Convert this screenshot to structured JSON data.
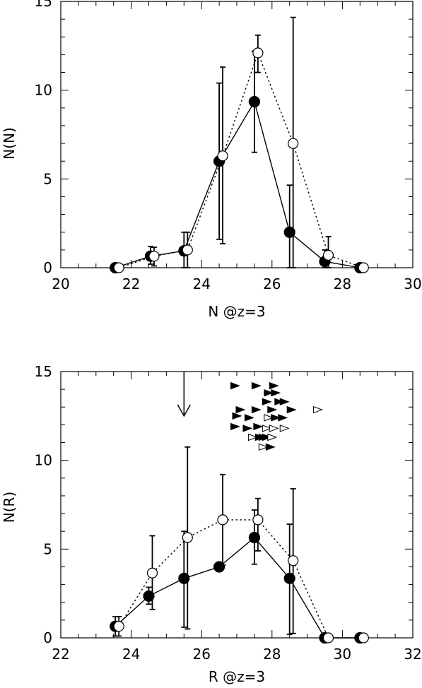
{
  "chart_data": [
    {
      "type": "scatter",
      "xlabel": "N  @z=3",
      "ylabel": "N(N)",
      "xlim": [
        20,
        30
      ],
      "ylim": [
        0,
        15
      ],
      "xticks": [
        20,
        22,
        24,
        26,
        28,
        30
      ],
      "yticks": [
        0,
        5,
        10,
        15
      ],
      "series": [
        {
          "marker": "filled-circle",
          "line": "solid",
          "points": [
            {
              "x": 21.55,
              "y": 0.0
            },
            {
              "x": 22.55,
              "y": 0.65,
              "lo": 0.2,
              "hi": 1.2
            },
            {
              "x": 23.5,
              "y": 0.95,
              "lo": 0.0,
              "hi": 2.0
            },
            {
              "x": 24.5,
              "y": 6.0,
              "lo": 1.6,
              "hi": 10.4
            },
            {
              "x": 25.5,
              "y": 9.35,
              "lo": 6.5,
              "hi": 12.2
            },
            {
              "x": 26.5,
              "y": 2.0,
              "lo": 0.0,
              "hi": 4.65
            },
            {
              "x": 27.5,
              "y": 0.35,
              "lo": 0.0,
              "hi": 1.0
            },
            {
              "x": 28.5,
              "y": 0.0
            }
          ]
        },
        {
          "marker": "open-circle",
          "line": "dotted",
          "points": [
            {
              "x": 21.65,
              "y": 0.0
            },
            {
              "x": 22.65,
              "y": 0.65,
              "lo": 0.1,
              "hi": 1.15
            },
            {
              "x": 23.6,
              "y": 1.0,
              "lo": 0.0,
              "hi": 2.0
            },
            {
              "x": 24.6,
              "y": 6.3,
              "lo": 1.35,
              "hi": 11.3
            },
            {
              "x": 25.6,
              "y": 12.1,
              "lo": 11.0,
              "hi": 13.1
            },
            {
              "x": 26.6,
              "y": 7.0,
              "lo": 0.0,
              "hi": 14.1
            },
            {
              "x": 27.6,
              "y": 0.7,
              "lo": 0.0,
              "hi": 1.75
            },
            {
              "x": 28.6,
              "y": 0.0
            }
          ]
        }
      ]
    },
    {
      "type": "scatter",
      "xlabel": "R  @z=3",
      "ylabel": "N(R)",
      "xlim": [
        22,
        32
      ],
      "ylim": [
        0,
        15
      ],
      "xticks": [
        22,
        24,
        26,
        28,
        30,
        32
      ],
      "yticks": [
        0,
        5,
        10,
        15
      ],
      "series": [
        {
          "marker": "filled-circle",
          "line": "solid",
          "points": [
            {
              "x": 23.55,
              "y": 0.65,
              "lo": 0.1,
              "hi": 1.2
            },
            {
              "x": 24.5,
              "y": 2.35,
              "lo": 1.9,
              "hi": 2.85
            },
            {
              "x": 25.5,
              "y": 3.35,
              "lo": 0.6,
              "hi": 6.0
            },
            {
              "x": 26.5,
              "y": 4.0
            },
            {
              "x": 27.5,
              "y": 5.65,
              "lo": 4.15,
              "hi": 7.2
            },
            {
              "x": 28.5,
              "y": 3.35,
              "lo": 0.2,
              "hi": 6.4
            },
            {
              "x": 29.5,
              "y": 0.0
            },
            {
              "x": 30.5,
              "y": 0.0
            }
          ]
        },
        {
          "marker": "open-circle",
          "line": "dotted",
          "points": [
            {
              "x": 23.65,
              "y": 0.65,
              "lo": 0.1,
              "hi": 1.2
            },
            {
              "x": 24.6,
              "y": 3.65,
              "lo": 1.6,
              "hi": 5.75
            },
            {
              "x": 25.6,
              "y": 5.65,
              "lo": 0.5,
              "hi": 10.75
            },
            {
              "x": 26.6,
              "y": 6.65,
              "lo": 4.1,
              "hi": 9.2
            },
            {
              "x": 27.6,
              "y": 6.65,
              "lo": 4.9,
              "hi": 7.85
            },
            {
              "x": 28.6,
              "y": 4.35,
              "lo": 0.25,
              "hi": 8.4
            },
            {
              "x": 29.6,
              "y": 0.0
            },
            {
              "x": 30.6,
              "y": 0.0
            }
          ]
        }
      ],
      "arrow": {
        "x": 25.5,
        "y_from": 15.0,
        "y_to": 12.5
      },
      "triangles": [
        {
          "x": 26.95,
          "y": 14.2,
          "filled": true
        },
        {
          "x": 27.55,
          "y": 14.2,
          "filled": true
        },
        {
          "x": 28.05,
          "y": 14.2,
          "filled": true
        },
        {
          "x": 27.9,
          "y": 13.8,
          "filled": true
        },
        {
          "x": 28.1,
          "y": 13.8,
          "filled": true
        },
        {
          "x": 27.85,
          "y": 13.3,
          "filled": true
        },
        {
          "x": 28.2,
          "y": 13.3,
          "filled": true
        },
        {
          "x": 28.35,
          "y": 13.3,
          "filled": true
        },
        {
          "x": 27.1,
          "y": 12.85,
          "filled": true
        },
        {
          "x": 27.55,
          "y": 12.85,
          "filled": true
        },
        {
          "x": 28.0,
          "y": 12.85,
          "filled": true
        },
        {
          "x": 28.55,
          "y": 12.85,
          "filled": true
        },
        {
          "x": 29.3,
          "y": 12.85,
          "filled": false
        },
        {
          "x": 27.0,
          "y": 12.5,
          "filled": true
        },
        {
          "x": 27.35,
          "y": 12.4,
          "filled": true
        },
        {
          "x": 27.9,
          "y": 12.4,
          "filled": false
        },
        {
          "x": 28.1,
          "y": 12.4,
          "filled": true
        },
        {
          "x": 28.3,
          "y": 12.4,
          "filled": true
        },
        {
          "x": 26.95,
          "y": 11.9,
          "filled": true
        },
        {
          "x": 27.3,
          "y": 11.8,
          "filled": true
        },
        {
          "x": 27.6,
          "y": 11.9,
          "filled": true
        },
        {
          "x": 27.85,
          "y": 11.8,
          "filled": false
        },
        {
          "x": 28.05,
          "y": 11.8,
          "filled": false
        },
        {
          "x": 28.35,
          "y": 11.8,
          "filled": false
        },
        {
          "x": 27.45,
          "y": 11.3,
          "filled": false
        },
        {
          "x": 27.65,
          "y": 11.3,
          "filled": true
        },
        {
          "x": 27.75,
          "y": 11.3,
          "filled": true
        },
        {
          "x": 27.85,
          "y": 11.3,
          "filled": true
        },
        {
          "x": 28.0,
          "y": 11.3,
          "filled": false
        },
        {
          "x": 27.75,
          "y": 10.75,
          "filled": false
        },
        {
          "x": 27.95,
          "y": 10.75,
          "filled": true
        }
      ]
    }
  ]
}
